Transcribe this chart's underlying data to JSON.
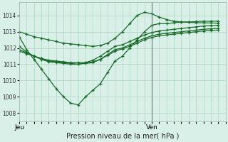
{
  "bg_color": "#d8f0e8",
  "grid_color": "#b0d4c4",
  "line_color": "#1a6b2a",
  "xlabel_text": "Pression niveau de la mer( hPa )",
  "x_tick_labels": [
    "Jeu",
    "Ven"
  ],
  "ylim": [
    1007.5,
    1014.8
  ],
  "yticks": [
    1008,
    1009,
    1010,
    1011,
    1012,
    1013,
    1014
  ],
  "xlim": [
    0,
    28
  ],
  "jeu_x": 0,
  "ven_x": 18,
  "series": [
    [
      1012.7,
      1011.9,
      1011.3,
      1010.7,
      1010.1,
      1009.5,
      1009.0,
      1008.6,
      1008.5,
      1009.0,
      1009.4,
      1009.8,
      1010.5,
      1011.2,
      1011.5,
      1012.0,
      1012.5,
      1013.0,
      1013.4,
      1013.5,
      1013.5,
      1013.55,
      1013.6,
      1013.6,
      1013.62,
      1013.65,
      1013.65,
      1013.65
    ],
    [
      1012.1,
      1011.75,
      1011.5,
      1011.3,
      1011.15,
      1011.1,
      1011.05,
      1011.0,
      1011.0,
      1011.1,
      1011.25,
      1011.5,
      1011.8,
      1012.1,
      1012.2,
      1012.4,
      1012.6,
      1012.8,
      1012.95,
      1013.05,
      1013.1,
      1013.15,
      1013.2,
      1013.25,
      1013.3,
      1013.35,
      1013.38,
      1013.4
    ],
    [
      1011.9,
      1011.7,
      1011.5,
      1011.35,
      1011.2,
      1011.15,
      1011.1,
      1011.05,
      1011.0,
      1011.05,
      1011.1,
      1011.3,
      1011.6,
      1011.9,
      1012.0,
      1012.2,
      1012.4,
      1012.6,
      1012.75,
      1012.85,
      1012.9,
      1012.95,
      1013.0,
      1013.05,
      1013.1,
      1013.15,
      1013.18,
      1013.2
    ],
    [
      1011.8,
      1011.65,
      1011.5,
      1011.35,
      1011.25,
      1011.2,
      1011.15,
      1011.1,
      1011.1,
      1011.1,
      1011.15,
      1011.3,
      1011.55,
      1011.8,
      1011.95,
      1012.1,
      1012.3,
      1012.5,
      1012.65,
      1012.75,
      1012.8,
      1012.85,
      1012.9,
      1012.95,
      1013.0,
      1013.05,
      1013.08,
      1013.1
    ],
    [
      1013.0,
      1012.85,
      1012.7,
      1012.6,
      1012.5,
      1012.4,
      1012.3,
      1012.25,
      1012.2,
      1012.15,
      1012.1,
      1012.15,
      1012.3,
      1012.6,
      1013.0,
      1013.5,
      1014.0,
      1014.2,
      1014.1,
      1013.9,
      1013.75,
      1013.65,
      1013.6,
      1013.58,
      1013.56,
      1013.55,
      1013.54,
      1013.53
    ]
  ]
}
